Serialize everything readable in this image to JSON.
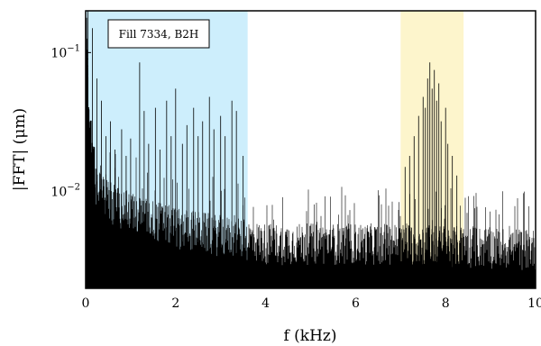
{
  "chart_data": {
    "type": "line",
    "xlabel": "f (kHz)",
    "ylabel": "|FFT| (μm)",
    "yscale": "log",
    "xlim": [
      0,
      10
    ],
    "ylim": [
      0.002,
      0.2
    ],
    "x_ticks": [
      0,
      2,
      4,
      6,
      8,
      10
    ],
    "y_ticks": [
      {
        "value": 0.1,
        "base": "10",
        "exp": "−1"
      },
      {
        "value": 0.01,
        "base": "10",
        "exp": "−2"
      }
    ],
    "grid": false,
    "legend": "none",
    "annotation": "Fill 7334, B2H",
    "shaded_regions": [
      {
        "x0": 0.0,
        "x1": 3.6,
        "color": "#cdeefc"
      },
      {
        "x0": 7.0,
        "x1": 8.4,
        "color": "#fdf5cc"
      }
    ],
    "noise_floor": {
      "x": [
        0.1,
        0.5,
        1.0,
        2.0,
        4.0,
        7.0,
        8.5,
        10.0
      ],
      "y": [
        0.012,
        0.0085,
        0.007,
        0.0055,
        0.0042,
        0.0042,
        0.004,
        0.0038
      ]
    },
    "peaks": {
      "x": [
        0.05,
        0.15,
        0.25,
        0.35,
        0.45,
        0.55,
        0.65,
        0.8,
        0.9,
        1.0,
        1.2,
        1.3,
        1.4,
        1.55,
        1.65,
        1.8,
        1.9,
        2.0,
        2.15,
        2.25,
        2.4,
        2.5,
        2.6,
        2.75,
        2.85,
        3.0,
        3.1,
        3.25,
        3.35,
        3.5,
        7.1,
        7.2,
        7.3,
        7.4,
        7.5,
        7.55,
        7.6,
        7.65,
        7.7,
        7.75,
        7.8,
        7.85,
        7.9,
        8.0,
        8.05,
        8.15,
        8.25
      ],
      "y": [
        0.2,
        0.15,
        0.065,
        0.045,
        0.025,
        0.032,
        0.02,
        0.028,
        0.018,
        0.024,
        0.085,
        0.038,
        0.022,
        0.04,
        0.02,
        0.045,
        0.025,
        0.055,
        0.022,
        0.03,
        0.04,
        0.025,
        0.032,
        0.048,
        0.028,
        0.035,
        0.025,
        0.045,
        0.038,
        0.018,
        0.015,
        0.018,
        0.025,
        0.035,
        0.048,
        0.04,
        0.065,
        0.085,
        0.055,
        0.075,
        0.045,
        0.06,
        0.032,
        0.04,
        0.022,
        0.018,
        0.013
      ]
    }
  }
}
